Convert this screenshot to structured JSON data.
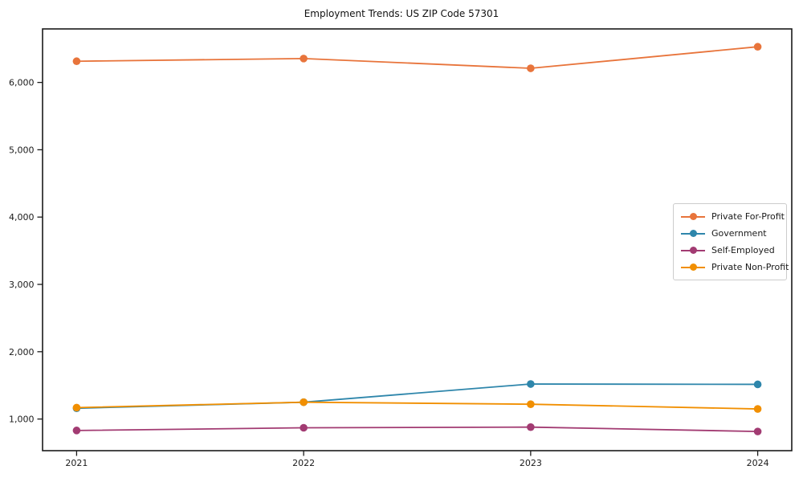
{
  "chart_data": {
    "type": "line",
    "title": "Employment Trends: US ZIP Code 57301",
    "xlabel": "",
    "ylabel": "",
    "x": [
      2021,
      2022,
      2023,
      2024
    ],
    "x_tick_labels": [
      "2021",
      "2022",
      "2023",
      "2024"
    ],
    "y_ticks": [
      {
        "value": 1000,
        "label": "1,000"
      },
      {
        "value": 2000,
        "label": "2,000"
      },
      {
        "value": 3000,
        "label": "3,000"
      },
      {
        "value": 4000,
        "label": "4,000"
      },
      {
        "value": 5000,
        "label": "5,000"
      },
      {
        "value": 6000,
        "label": "6,000"
      }
    ],
    "series": [
      {
        "name": "Private For-Profit",
        "color": "#E8743B",
        "values": [
          6315,
          6355,
          6210,
          6530
        ]
      },
      {
        "name": "Government",
        "color": "#2E86AB",
        "values": [
          1160,
          1250,
          1520,
          1515
        ]
      },
      {
        "name": "Self-Employed",
        "color": "#A23B72",
        "values": [
          830,
          870,
          880,
          815
        ]
      },
      {
        "name": "Private Non-Profit",
        "color": "#F18F01",
        "values": [
          1170,
          1250,
          1220,
          1150
        ]
      }
    ],
    "xlim": [
      2020.85,
      2024.15
    ],
    "ylim": [
      530,
      6795
    ],
    "grid": false,
    "legend_position": "center right",
    "axis_color": "#1a1a1a",
    "text_color": "#1a1a1a"
  }
}
